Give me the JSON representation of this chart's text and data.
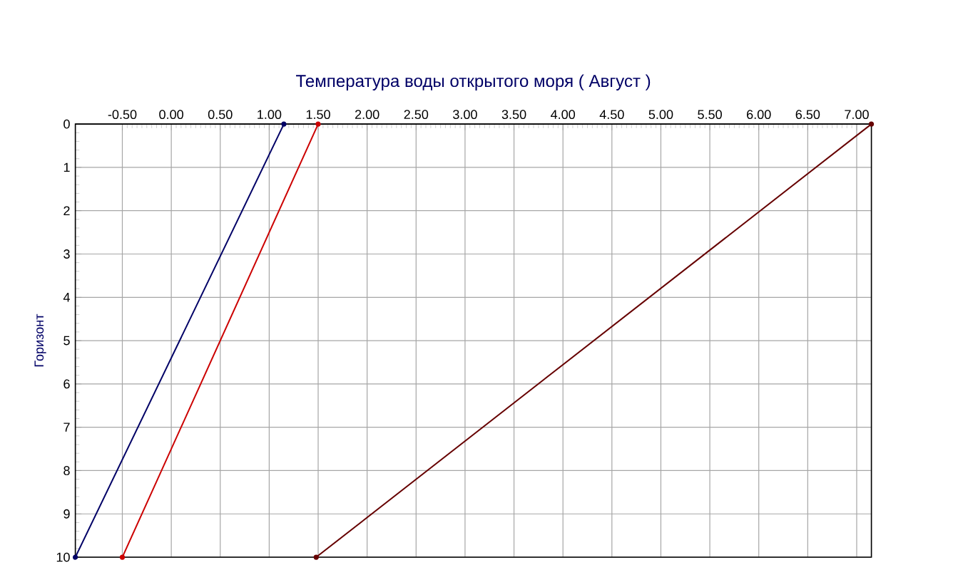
{
  "chart_data": {
    "type": "line",
    "title": "Температура воды открытого моря    ( Август )",
    "ylabel": "Горизонт",
    "series": [
      {
        "color": "#000066",
        "x": [
          -0.98,
          1.15
        ],
        "values": [
          10,
          0
        ]
      },
      {
        "color": "#cc0000",
        "x": [
          -0.5,
          1.5
        ],
        "values": [
          10,
          0
        ]
      },
      {
        "color": "#660000",
        "x": [
          1.48,
          7.15
        ],
        "values": [
          10,
          0
        ]
      }
    ],
    "xlim": [
      -0.98,
      7.15
    ],
    "xticks": [
      {
        "value": -0.5,
        "label": "-0.50"
      },
      {
        "value": 0,
        "label": "0.00"
      },
      {
        "value": 0.5,
        "label": "0.50"
      },
      {
        "value": 1,
        "label": "1.00"
      },
      {
        "value": 1.5,
        "label": "1.50"
      },
      {
        "value": 2,
        "label": "2.00"
      },
      {
        "value": 2.5,
        "label": "2.50"
      },
      {
        "value": 3,
        "label": "3.00"
      },
      {
        "value": 3.5,
        "label": "3.50"
      },
      {
        "value": 4,
        "label": "4.00"
      },
      {
        "value": 4.5,
        "label": "4.50"
      },
      {
        "value": 5,
        "label": "5.00"
      },
      {
        "value": 5.5,
        "label": "5.50"
      },
      {
        "value": 6,
        "label": "6.00"
      },
      {
        "value": 6.5,
        "label": "6.50"
      },
      {
        "value": 7,
        "label": "7.00"
      }
    ],
    "ylim": [
      10,
      0
    ],
    "yticks": [
      0,
      1,
      2,
      3,
      4,
      5,
      6,
      7,
      8,
      9,
      10
    ],
    "grid": true,
    "marker": "circle",
    "line_style": "solid"
  }
}
